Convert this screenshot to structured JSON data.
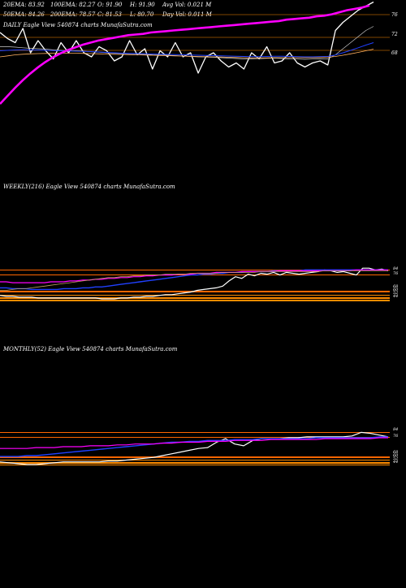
{
  "header": {
    "row1": [
      "20EMA: 83.92",
      "100EMA: 82.27",
      "O: 91.90",
      "H: 91.90",
      "Avg Vol: 0.021 M"
    ],
    "row2": [
      "50EMA: 84.26",
      "200EMA: 78.57",
      "C: 81.53",
      "L: 80.70",
      "Day Vol: 0.011 M"
    ]
  },
  "daily_caption": "DAILY Eagle  View  540874  charts MunafaSutra.com",
  "weekly_caption": "WEEKLY(216) Eagle  View  540874  charts MunafaSutra.com",
  "monthly_caption": "MONTHLY(52) Eagle  View  540874  charts MunafaSutra.com",
  "colors": {
    "background": "#000000",
    "price": "#ffffff",
    "ema_slow": "#ff00ff",
    "ema_fast": "#2040ff",
    "ema_20": "#ffb060",
    "ema_50": "#c08040",
    "level_line": "#ff8c00",
    "band": "#ff6600"
  },
  "chart_data": [
    {
      "type": "line",
      "panel": "daily",
      "y_ticks": [
        "76",
        "72",
        "68"
      ],
      "series": [
        {
          "values": [
            95,
            92,
            90,
            97,
            85,
            91,
            86,
            82,
            90,
            85,
            91,
            85,
            83,
            88,
            86,
            81,
            83,
            91,
            84,
            87,
            77,
            86,
            83,
            90,
            83,
            85,
            75,
            83,
            85,
            81,
            78,
            80,
            77,
            85,
            82,
            88,
            80,
            81,
            85,
            80,
            78,
            80,
            81,
            79,
            96,
            100,
            103,
            106,
            108,
            110
          ]
        },
        {
          "values": [
            88,
            88,
            87.8,
            87.5,
            87.2,
            87,
            86.8,
            86.5,
            86.2,
            86,
            86,
            85.8,
            85.5,
            85.3,
            85,
            84.8,
            84.6,
            84.5,
            84.4,
            84.2,
            84,
            83.9,
            83.8,
            83.6,
            83.4,
            83.2,
            83,
            82.9,
            82.8,
            82.6,
            82.4,
            82.2,
            82,
            82,
            82.1,
            82.3,
            82.4,
            82.2,
            82,
            81.9,
            81.8,
            81.9,
            82,
            82,
            84,
            87,
            90,
            93,
            96,
            98
          ]
        },
        {
          "values": [
            86,
            86.2,
            86.4,
            86.5,
            86.4,
            86.3,
            86.2,
            86.1,
            86,
            85.9,
            85.8,
            85.7,
            85.6,
            85.4,
            85.2,
            85,
            84.8,
            84.7,
            84.6,
            84.5,
            84.4,
            84.3,
            84.2,
            84.1,
            84,
            83.9,
            83.8,
            83.7,
            83.6,
            83.5,
            83.4,
            83.3,
            83.2,
            83.1,
            83.1,
            83.2,
            83.3,
            83.3,
            83.2,
            83.1,
            83,
            83,
            83.1,
            83.2,
            83.9,
            85,
            86.2,
            87.5,
            88.8,
            90
          ]
        },
        {
          "values": [
            83,
            83.5,
            84,
            84.3,
            84.5,
            84.6,
            84.7,
            84.8,
            84.8,
            84.8,
            84.8,
            84.7,
            84.6,
            84.5,
            84.4,
            84.3,
            84.2,
            84.1,
            84,
            83.9,
            83.8,
            83.7,
            83.6,
            83.5,
            83.4,
            83.3,
            83.2,
            83.1,
            83,
            82.9,
            82.8,
            82.7,
            82.6,
            82.5,
            82.5,
            82.5,
            82.6,
            82.6,
            82.6,
            82.6,
            82.6,
            82.6,
            82.7,
            82.8,
            83.2,
            83.8,
            84.5,
            85.2,
            86,
            86.8
          ]
        },
        {
          "values": [
            64,
            65.2,
            66.4,
            67.5,
            68.5,
            69.4,
            70.2,
            70.9,
            71.5,
            72,
            72.4,
            72.8,
            73.1,
            73.4,
            73.6,
            73.8,
            74,
            74.2,
            74.3,
            74.4,
            74.6,
            74.7,
            74.8,
            74.9,
            75,
            75.1,
            75.2,
            75.3,
            75.4,
            75.5,
            75.6,
            75.7,
            75.8,
            75.9,
            76,
            76.1,
            76.2,
            76.3,
            76.5,
            76.6,
            76.7,
            76.8,
            77,
            77.1,
            77.3,
            77.6,
            77.9,
            78.1,
            78.3,
            78.6
          ]
        }
      ]
    },
    {
      "type": "line",
      "panel": "weekly",
      "y_ticks": [
        "84",
        "76",
        "68",
        "60",
        "52",
        "44"
      ],
      "series": [
        {
          "values": [
            36,
            35,
            35,
            34,
            34,
            34,
            33,
            33,
            33,
            33,
            33,
            33,
            33,
            33,
            33,
            33,
            32,
            32,
            32,
            33,
            33,
            34,
            34,
            35,
            35,
            36,
            37,
            37,
            38,
            39,
            40,
            42,
            43,
            44,
            45,
            47,
            53,
            58,
            56,
            61,
            59,
            62,
            61,
            63,
            60,
            63,
            62,
            61,
            62,
            63,
            64,
            66,
            65,
            63,
            64,
            62,
            60,
            68,
            68,
            66,
            67,
            65
          ]
        },
        {
          "values": [
            45,
            45,
            44,
            44,
            44,
            43,
            43,
            43,
            43,
            43,
            44,
            44,
            44,
            45,
            45,
            46,
            46,
            47,
            48,
            49,
            50,
            51,
            52,
            53,
            54,
            55,
            56,
            57,
            58,
            59,
            60,
            60,
            61,
            61,
            62,
            62,
            63,
            63,
            63,
            64,
            64,
            64,
            64,
            65,
            65,
            65,
            65,
            65,
            66,
            66,
            66,
            66,
            66,
            66,
            66,
            66,
            66,
            66,
            66,
            66,
            66,
            66
          ]
        },
        {
          "values": [
            52,
            52,
            51,
            51,
            51,
            51,
            51,
            51,
            52,
            52,
            52,
            53,
            53,
            54,
            54,
            55,
            55,
            56,
            56,
            57,
            57,
            58,
            58,
            59,
            59,
            60,
            60,
            60,
            61,
            61,
            61,
            62,
            62,
            62,
            63,
            63,
            63,
            63,
            64,
            64,
            64,
            64,
            64,
            64,
            65,
            65,
            65,
            65,
            65,
            65,
            65,
            65,
            65,
            65,
            65,
            65,
            66,
            66,
            66,
            66,
            66,
            66
          ]
        },
        {
          "values": [
            42,
            42,
            43,
            44,
            44,
            45,
            46,
            47,
            48,
            49,
            50,
            51,
            52,
            53,
            54,
            55,
            56,
            57,
            57,
            58,
            58,
            59,
            59,
            60,
            60,
            60,
            61,
            61,
            61,
            61,
            62,
            62,
            62,
            62,
            62,
            63,
            63,
            63,
            63,
            63,
            63,
            64,
            64,
            64,
            64,
            64,
            64,
            64,
            64,
            64,
            64,
            65,
            65,
            65,
            65,
            65,
            65,
            65,
            65,
            65,
            65,
            65
          ]
        }
      ]
    },
    {
      "type": "line",
      "panel": "monthly",
      "y_ticks": [
        "84",
        "76",
        "68",
        "60",
        "52",
        "44"
      ],
      "series": [
        {
          "values": [
            40,
            39,
            38,
            37,
            37,
            38,
            39,
            40,
            40,
            40,
            40,
            40,
            41,
            41,
            42,
            43,
            44,
            45,
            47,
            49,
            51,
            53,
            55,
            56,
            62,
            66,
            60,
            58,
            64,
            66,
            66,
            66,
            67,
            67,
            68,
            68,
            68,
            68,
            68,
            69,
            73,
            72,
            70,
            68
          ]
        },
        {
          "values": [
            46,
            46,
            46,
            47,
            47,
            48,
            49,
            50,
            51,
            52,
            53,
            54,
            55,
            56,
            57,
            58,
            59,
            60,
            61,
            62,
            62,
            63,
            63,
            64,
            64,
            64,
            65,
            65,
            65,
            66,
            66,
            66,
            66,
            66,
            66,
            67,
            67,
            67,
            67,
            67,
            67,
            67,
            68,
            68
          ]
        },
        {
          "values": [
            55,
            55,
            55,
            55,
            56,
            56,
            56,
            57,
            57,
            57,
            58,
            58,
            58,
            59,
            59,
            60,
            60,
            60,
            61,
            61,
            62,
            62,
            62,
            63,
            63,
            63,
            64,
            64,
            64,
            64,
            65,
            65,
            65,
            65,
            65,
            65,
            66,
            66,
            66,
            66,
            66,
            66,
            67,
            67
          ]
        }
      ]
    }
  ]
}
